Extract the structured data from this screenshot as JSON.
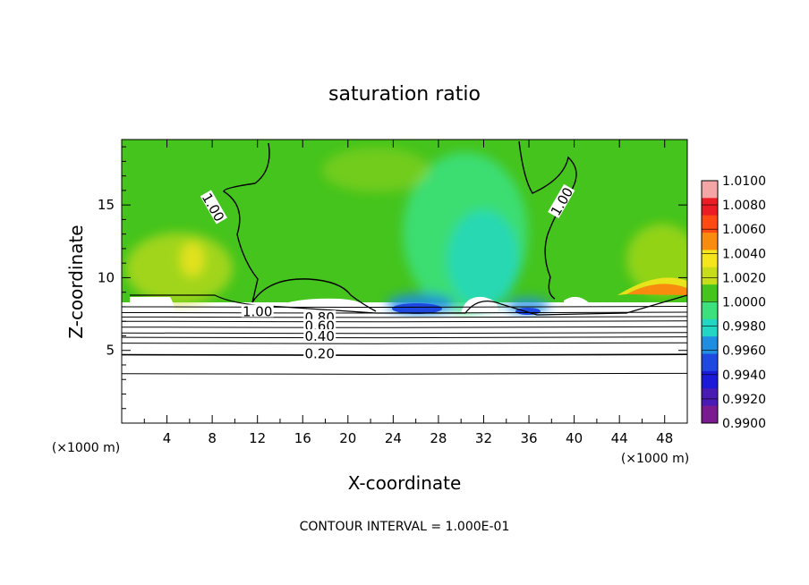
{
  "chart_data": {
    "type": "heatmap",
    "title": "saturation ratio",
    "xlabel": "X-coordinate",
    "ylabel": "Z-coordinate",
    "x_unit_left": "(×1000 m)",
    "x_unit_right": "(×1000 m)",
    "x_ticks": [
      4,
      8,
      12,
      16,
      20,
      24,
      28,
      32,
      36,
      40,
      44,
      48
    ],
    "y_ticks": [
      5,
      10,
      15
    ],
    "xlim": [
      0,
      50
    ],
    "ylim": [
      0,
      19.5
    ],
    "colorbar": {
      "labels": [
        "1.0100",
        "1.0080",
        "1.0060",
        "1.0040",
        "1.0020",
        "1.0000",
        "0.9980",
        "0.9960",
        "0.9940",
        "0.9920",
        "0.9900"
      ],
      "colors": [
        "#f4a6a6",
        "#ec1c24",
        "#ff4a14",
        "#f98c0e",
        "#f4e51c",
        "#c7dd19",
        "#45c41d",
        "#3ce07c",
        "#22d6c4",
        "#1f8ee0",
        "#1e48e0",
        "#1a1ad8",
        "#4a1ab4",
        "#7a1a90"
      ]
    },
    "contour_labels": [
      {
        "text": "1.00",
        "x": 8.0,
        "y": 14.8,
        "angle": 60
      },
      {
        "text": "1.00",
        "x": 39.0,
        "y": 15.2,
        "angle": -60
      },
      {
        "text": "1.00",
        "x": 12.0,
        "y": 7.6,
        "angle": 0
      },
      {
        "text": "0.80",
        "x": 17.5,
        "y": 7.2,
        "angle": 0
      },
      {
        "text": "0.60",
        "x": 17.5,
        "y": 6.6,
        "angle": 0
      },
      {
        "text": "0.40",
        "x": 17.5,
        "y": 5.9,
        "angle": 0
      },
      {
        "text": "0.20",
        "x": 17.5,
        "y": 4.7,
        "angle": 0
      }
    ],
    "contour_interval_text": "CONTOUR INTERVAL = 1.000E-01"
  }
}
